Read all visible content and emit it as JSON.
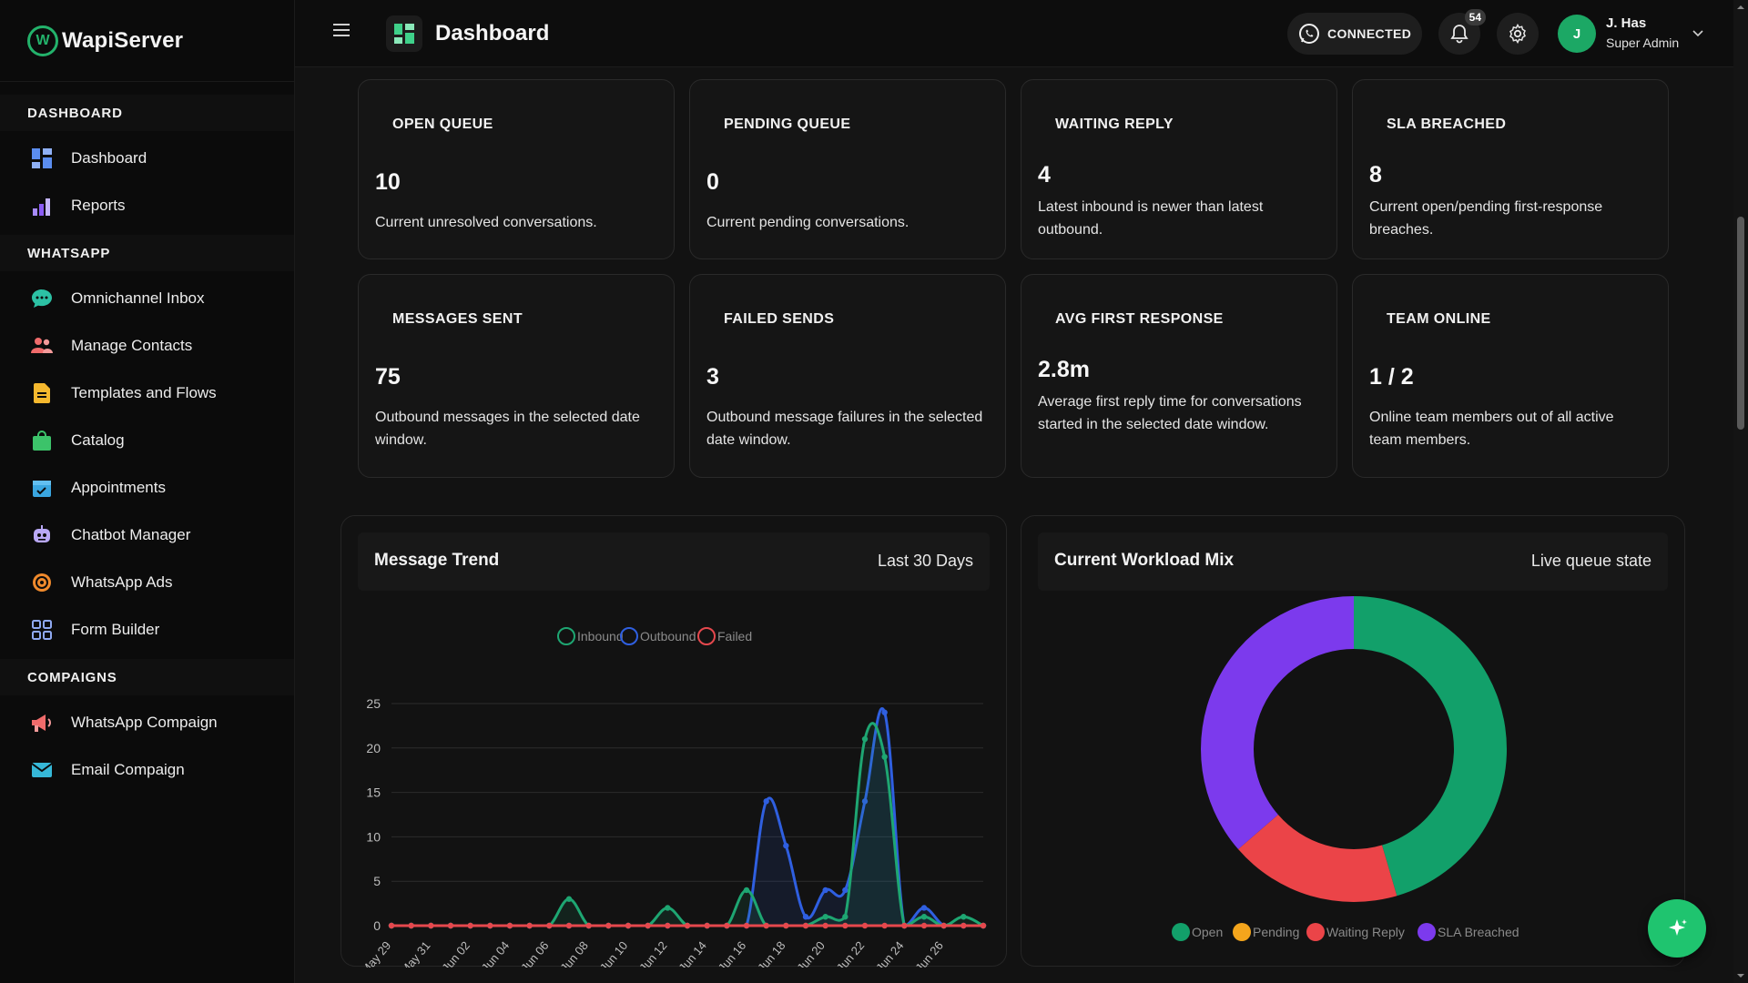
{
  "brand": {
    "name": "WapiServer",
    "logo_letter": "W"
  },
  "sidebar": {
    "sections": [
      {
        "title": "DASHBOARD",
        "items": [
          {
            "label": "Dashboard",
            "icon": "dashboard-grid-icon"
          },
          {
            "label": "Reports",
            "icon": "bar-chart-icon"
          }
        ]
      },
      {
        "title": "WHATSAPP",
        "items": [
          {
            "label": "Omnichannel Inbox",
            "icon": "chat-bubble-icon"
          },
          {
            "label": "Manage Contacts",
            "icon": "contacts-icon"
          },
          {
            "label": "Templates and Flows",
            "icon": "document-icon"
          },
          {
            "label": "Catalog",
            "icon": "shopping-bag-icon"
          },
          {
            "label": "Appointments",
            "icon": "calendar-icon"
          },
          {
            "label": "Chatbot Manager",
            "icon": "robot-icon"
          },
          {
            "label": "WhatsApp Ads",
            "icon": "target-icon"
          },
          {
            "label": "Form Builder",
            "icon": "form-grid-icon"
          }
        ]
      },
      {
        "title": "COMPAIGNS",
        "items": [
          {
            "label": "WhatsApp Compaign",
            "icon": "megaphone-icon"
          },
          {
            "label": "Email Compaign",
            "icon": "email-icon"
          }
        ]
      }
    ]
  },
  "header": {
    "title": "Dashboard",
    "status": "CONNECTED",
    "notifications_count": "54",
    "user": {
      "initial": "J",
      "name": "J. Has",
      "role": "Super Admin"
    }
  },
  "stats": [
    {
      "title": "OPEN QUEUE",
      "value": "10",
      "desc": "Current unresolved conversations."
    },
    {
      "title": "PENDING QUEUE",
      "value": "0",
      "desc": "Current pending conversations."
    },
    {
      "title": "WAITING REPLY",
      "value": "4",
      "desc": "Latest inbound is newer than latest outbound."
    },
    {
      "title": "SLA BREACHED",
      "value": "8",
      "desc": "Current open/pending first-response breaches."
    },
    {
      "title": "MESSAGES SENT",
      "value": "75",
      "desc": "Outbound messages in the selected date window."
    },
    {
      "title": "FAILED SENDS",
      "value": "3",
      "desc": "Outbound message failures in the selected date window."
    },
    {
      "title": "AVG FIRST RESPONSE",
      "value": "2.8m",
      "desc": "Average first reply time for conversations started in the selected date window."
    },
    {
      "title": "TEAM ONLINE",
      "value": "1 / 2",
      "desc": "Online team members out of all active team members."
    }
  ],
  "trend_panel": {
    "title": "Message Trend",
    "range": "Last 30 Days"
  },
  "workload_panel": {
    "title": "Current Workload Mix",
    "subtitle": "Live queue state"
  },
  "chart_data": [
    {
      "type": "line",
      "ylim": [
        0,
        25
      ],
      "yticks": [
        0,
        5,
        10,
        15,
        20,
        25
      ],
      "tick_labels": [
        "May 29",
        "May 31",
        "Jun 02",
        "Jun 04",
        "Jun 06",
        "Jun 08",
        "Jun 10",
        "Jun 12",
        "Jun 14",
        "Jun 16",
        "Jun 18",
        "Jun 20",
        "Jun 22",
        "Jun 24",
        "Jun 26"
      ],
      "x": [
        "May 29",
        "May 30",
        "May 31",
        "Jun 01",
        "Jun 02",
        "Jun 03",
        "Jun 04",
        "Jun 05",
        "Jun 06",
        "Jun 07",
        "Jun 08",
        "Jun 09",
        "Jun 10",
        "Jun 11",
        "Jun 12",
        "Jun 13",
        "Jun 14",
        "Jun 15",
        "Jun 16",
        "Jun 17",
        "Jun 18",
        "Jun 19",
        "Jun 20",
        "Jun 21",
        "Jun 22",
        "Jun 23",
        "Jun 24",
        "Jun 25",
        "Jun 26",
        "Jun 27",
        "Jun 28"
      ],
      "legend_position": "top",
      "grid": true,
      "series": [
        {
          "name": "Inbound",
          "color": "#1ea672",
          "values": [
            0,
            0,
            0,
            0,
            0,
            0,
            0,
            0,
            0,
            3,
            0,
            0,
            0,
            0,
            2,
            0,
            0,
            0,
            4,
            0,
            0,
            0,
            1,
            1,
            21,
            19,
            0,
            1,
            0,
            1,
            0
          ]
        },
        {
          "name": "Outbound",
          "color": "#2f5fe0",
          "values": [
            0,
            0,
            0,
            0,
            0,
            0,
            0,
            0,
            0,
            0,
            0,
            0,
            0,
            0,
            0,
            0,
            0,
            0,
            0,
            14,
            9,
            1,
            4,
            4,
            14,
            24,
            0,
            2,
            0,
            0,
            0
          ]
        },
        {
          "name": "Failed",
          "color": "#e5484d",
          "values": [
            0,
            0,
            0,
            0,
            0,
            0,
            0,
            0,
            0,
            0,
            0,
            0,
            0,
            0,
            0,
            0,
            0,
            0,
            0,
            0,
            0,
            0,
            0,
            0,
            0,
            0,
            0,
            0,
            0,
            0,
            0
          ]
        }
      ]
    },
    {
      "type": "pie",
      "donut": true,
      "legend_position": "bottom",
      "categories": [
        "Open",
        "Pending",
        "Waiting Reply",
        "SLA Breached"
      ],
      "values": [
        10,
        0,
        4,
        8
      ],
      "colors": [
        "#12a06a",
        "#f4a51c",
        "#eb4448",
        "#7c3aed"
      ]
    }
  ]
}
